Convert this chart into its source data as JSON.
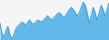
{
  "values": [
    55,
    45,
    42,
    48,
    52,
    44,
    40,
    44,
    50,
    52,
    54,
    56,
    55,
    53,
    56,
    58,
    55,
    54,
    56,
    58,
    57,
    56,
    58,
    60,
    62,
    60,
    58,
    60,
    62,
    64,
    65,
    63,
    60,
    62,
    65,
    68,
    70,
    68,
    65,
    62,
    65,
    70,
    75,
    72,
    65,
    55,
    62,
    70,
    65,
    58,
    65,
    72,
    68,
    62,
    68,
    74
  ],
  "fill_color": "#62b8e8",
  "line_color": "#3a9ad4",
  "background_color": "#f5f5f5"
}
